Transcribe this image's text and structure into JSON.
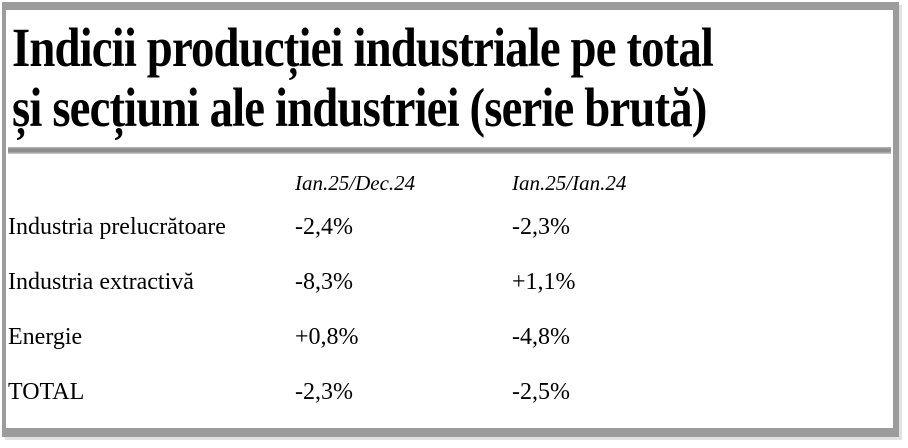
{
  "title": {
    "full": "Indicii producției industriale pe total și secțiuni ale industriei (serie brută)",
    "line1": "Indicii producției industriale pe total",
    "line2": "și secțiuni ale industriei (serie brută)"
  },
  "table": {
    "column_headers": [
      "Ian.25/Dec.24",
      "Ian.25/Ian.24"
    ],
    "rows": [
      {
        "label": "Industria prelucrătoare",
        "mom": "-2,4%",
        "yoy": "-2,3%"
      },
      {
        "label": "Industria extractivă",
        "mom": "-8,3%",
        "yoy": "+1,1%"
      },
      {
        "label": "Energie",
        "mom": "+0,8%",
        "yoy": "-4,8%"
      },
      {
        "label": "TOTAL",
        "mom": "-2,3%",
        "yoy": "-2,5%"
      }
    ]
  },
  "chart_data": {
    "type": "table",
    "title": "Indicii producției industriale pe total și secțiuni ale industriei (serie brută)",
    "categories": [
      "Industria prelucrătoare",
      "Industria extractivă",
      "Energie",
      "TOTAL"
    ],
    "series": [
      {
        "name": "Ian.25/Dec.24",
        "values": [
          -2.4,
          -8.3,
          0.8,
          -2.3
        ],
        "unit": "%"
      },
      {
        "name": "Ian.25/Ian.24",
        "values": [
          -2.3,
          1.1,
          -4.8,
          -2.5
        ],
        "unit": "%"
      }
    ],
    "notes": "Percentage change of Romanian industrial production indices, gross series; decimal comma formatting as displayed"
  },
  "colors": {
    "frame": "#9c9c9c",
    "divider_dark": "#8a8a8a",
    "divider_light": "#d2d2d2",
    "text": "#000000",
    "background": "#ffffff"
  }
}
